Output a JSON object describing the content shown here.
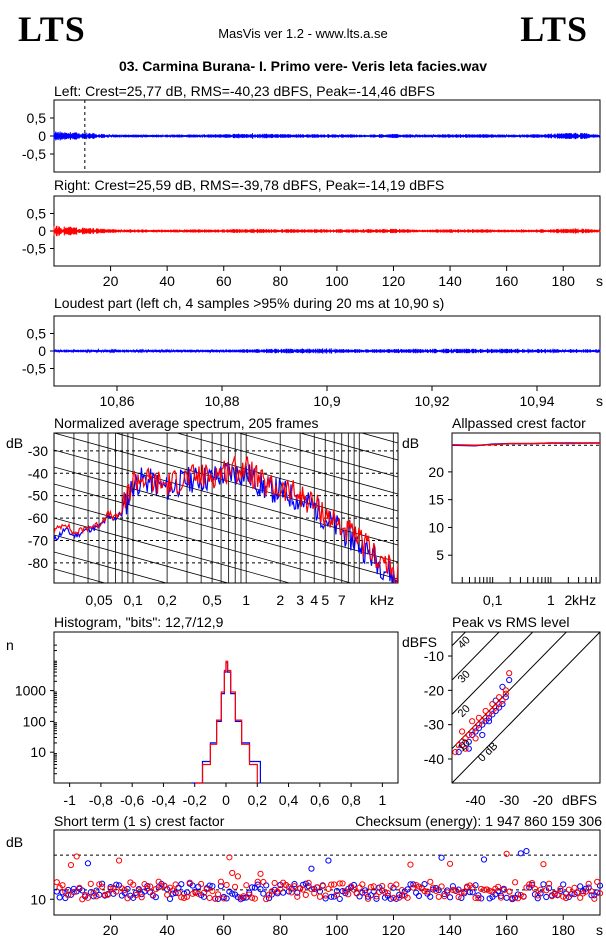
{
  "header": {
    "logo_left": "LTS",
    "logo_right": "LTS",
    "app": "MasVis ver 1.2 - www.lts.a.se",
    "file": "03. Carmina Burana- I. Primo vere- Veris leta facies.wav"
  },
  "colors": {
    "left": "#0000ff",
    "right": "#ff0000",
    "axis": "#000000",
    "grid": "#000000"
  },
  "chart_data": [
    {
      "id": "left_wave",
      "type": "line",
      "title": "Left: Crest=25,77 dB, RMS=-40,23 dBFS, Peak=-14,46 dBFS",
      "y_ticks": [
        "0,5",
        "0",
        "-0,5"
      ],
      "ylim": [
        -1,
        1
      ],
      "xlim": [
        0,
        193
      ],
      "marker_at_s": 10.9,
      "envelope": {
        "x": [
          0,
          2,
          5,
          8,
          12,
          20,
          40,
          60,
          70,
          80,
          100,
          110,
          120,
          130,
          140,
          150,
          160,
          170,
          180,
          186,
          193
        ],
        "amp": [
          0.12,
          0.1,
          0.09,
          0.08,
          0.07,
          0.03,
          0.03,
          0.04,
          0.06,
          0.04,
          0.04,
          0.03,
          0.05,
          0.03,
          0.04,
          0.04,
          0.03,
          0.04,
          0.06,
          0.08,
          0.02
        ]
      }
    },
    {
      "id": "right_wave",
      "type": "line",
      "title": "Right: Crest=25,59 dB, RMS=-39,78 dBFS, Peak=-14,19 dBFS",
      "y_ticks": [
        "0,5",
        "0",
        "-0,5"
      ],
      "ylim": [
        -1,
        1
      ],
      "xlim": [
        0,
        193
      ],
      "x_ticks": [
        "20",
        "40",
        "60",
        "80",
        "100",
        "120",
        "140",
        "160",
        "180"
      ],
      "x_tick_values": [
        20,
        40,
        60,
        80,
        100,
        120,
        140,
        160,
        180
      ],
      "x_unit": "s",
      "envelope": {
        "x": [
          0,
          2,
          5,
          8,
          12,
          20,
          40,
          60,
          70,
          80,
          100,
          110,
          120,
          130,
          140,
          150,
          160,
          170,
          180,
          186,
          193
        ],
        "amp": [
          0.13,
          0.1,
          0.1,
          0.08,
          0.07,
          0.04,
          0.03,
          0.04,
          0.05,
          0.04,
          0.04,
          0.04,
          0.05,
          0.03,
          0.04,
          0.04,
          0.03,
          0.04,
          0.05,
          0.06,
          0.02
        ]
      }
    },
    {
      "id": "loudest",
      "type": "line",
      "title": "Loudest part (left  ch, 4 samples >95% during 20 ms at 10,90 s)",
      "y_ticks": [
        "0,5",
        "0",
        "-0,5"
      ],
      "ylim": [
        -1,
        1
      ],
      "xlim": [
        10.848,
        10.952
      ],
      "x_ticks": [
        "10,86",
        "10,88",
        "10,9",
        "10,92",
        "10,94"
      ],
      "x_tick_values": [
        10.86,
        10.88,
        10.9,
        10.92,
        10.94
      ],
      "x_unit": "s",
      "envelope": {
        "x": [
          10.848,
          10.88,
          10.89,
          10.9,
          10.905,
          10.92,
          10.94,
          10.952
        ],
        "amp": [
          0.03,
          0.03,
          0.05,
          0.06,
          0.04,
          0.05,
          0.05,
          0.04
        ]
      }
    },
    {
      "id": "spectrum",
      "type": "line",
      "title": "Normalized average spectrum, 205 frames",
      "ylabel": "dB",
      "y_ticks": [
        "-30",
        "-40",
        "-50",
        "-60",
        "-70",
        "-80"
      ],
      "y_tick_values": [
        -30,
        -40,
        -50,
        -60,
        -70,
        -80
      ],
      "ylim": [
        -89,
        -22
      ],
      "x_scale": "log",
      "xlim": [
        0.02,
        22
      ],
      "x_ticks": [
        "0,05",
        "0,1",
        "0,2",
        "0,5",
        "1",
        "2",
        "3",
        "4",
        "5",
        "7"
      ],
      "x_tick_values": [
        0.05,
        0.1,
        0.2,
        0.5,
        1,
        2,
        3,
        4,
        5,
        7
      ],
      "x_unit": "kHz",
      "series": [
        {
          "color": "#0000ff",
          "x": [
            0.02,
            0.025,
            0.03,
            0.04,
            0.05,
            0.06,
            0.07,
            0.08,
            0.1,
            0.12,
            0.15,
            0.2,
            0.3,
            0.5,
            0.7,
            1,
            1.5,
            2,
            3,
            4,
            5,
            7,
            10,
            15,
            22
          ],
          "y": [
            -70,
            -65,
            -68,
            -65,
            -64,
            -60,
            -60,
            -58,
            -45,
            -43,
            -44,
            -47,
            -43,
            -42,
            -40,
            -40,
            -47,
            -48,
            -52,
            -55,
            -60,
            -66,
            -72,
            -80,
            -88
          ]
        },
        {
          "color": "#ff0000",
          "x": [
            0.02,
            0.025,
            0.03,
            0.04,
            0.05,
            0.06,
            0.07,
            0.08,
            0.1,
            0.12,
            0.15,
            0.2,
            0.3,
            0.5,
            0.7,
            1,
            1.5,
            2,
            3,
            4,
            5,
            7,
            10,
            15,
            22
          ],
          "y": [
            -66,
            -62,
            -67,
            -64,
            -63,
            -58,
            -60,
            -57,
            -43,
            -42,
            -44,
            -45,
            -42,
            -41,
            -38,
            -38,
            -46,
            -47,
            -50,
            -54,
            -58,
            -64,
            -70,
            -78,
            -86
          ]
        }
      ]
    },
    {
      "id": "allpass",
      "type": "line",
      "title": "Allpassed crest factor",
      "ylabel": "dB",
      "y_ticks": [
        "20",
        "15",
        "10",
        "5"
      ],
      "y_tick_values": [
        20,
        15,
        10,
        5
      ],
      "ylim": [
        0,
        27
      ],
      "x_scale": "log",
      "xlim": [
        0.02,
        7
      ],
      "x_ticks": [
        "0,1",
        "1",
        "2",
        "kHz"
      ],
      "x_tick_values": [
        0.1,
        1,
        2
      ],
      "series": [
        {
          "color": "#0000ff",
          "x": [
            0.02,
            0.05,
            0.1,
            0.2,
            0.5,
            1,
            2,
            5,
            7
          ],
          "y": [
            24.8,
            24.7,
            25.0,
            25.1,
            25.1,
            25.2,
            25.2,
            25.2,
            25.2
          ]
        },
        {
          "color": "#ff0000",
          "x": [
            0.02,
            0.05,
            0.1,
            0.2,
            0.5,
            1,
            2,
            5,
            7
          ],
          "y": [
            24.9,
            24.8,
            24.9,
            25.1,
            25.1,
            25.2,
            25.1,
            25.2,
            25.2
          ]
        }
      ]
    },
    {
      "id": "histogram",
      "type": "line",
      "title": "Histogram, \"bits\": 12,7/12,9",
      "ylabel": "n",
      "y_scale": "log",
      "y_ticks": [
        "1000",
        "100",
        "10"
      ],
      "y_tick_values": [
        1000,
        100,
        10
      ],
      "ylim": [
        1,
        80000
      ],
      "xlim": [
        -1.1,
        1.1
      ],
      "x_ticks": [
        "-1",
        "-0,8",
        "-0,6",
        "-0,4",
        "-0,2",
        "0",
        "0,2",
        "0,4",
        "0,6",
        "0,8",
        "1"
      ],
      "x_tick_values": [
        -1,
        -0.8,
        -0.6,
        -0.4,
        -0.2,
        0,
        0.2,
        0.4,
        0.6,
        0.8,
        1
      ],
      "series": [
        {
          "color": "#0000ff",
          "x": [
            -0.22,
            -0.15,
            -0.1,
            -0.06,
            -0.03,
            -0.01,
            0,
            0.01,
            0.03,
            0.06,
            0.1,
            0.15,
            0.22
          ],
          "y": [
            1,
            5,
            20,
            100,
            800,
            4000,
            8000,
            4000,
            800,
            100,
            20,
            5,
            1
          ]
        },
        {
          "color": "#ff0000",
          "x": [
            -0.2,
            -0.15,
            -0.1,
            -0.06,
            -0.03,
            -0.01,
            0,
            0.01,
            0.03,
            0.06,
            0.1,
            0.15,
            0.2
          ],
          "y": [
            1,
            4,
            18,
            110,
            900,
            4500,
            9000,
            4500,
            900,
            110,
            18,
            4,
            1
          ]
        }
      ]
    },
    {
      "id": "peak_rms",
      "type": "scatter",
      "title": "Peak vs RMS level",
      "ylabel": "dBFS",
      "y_ticks": [
        "-10",
        "-20",
        "-30",
        "-40"
      ],
      "y_tick_values": [
        -10,
        -20,
        -30,
        -40
      ],
      "ylim": [
        -47,
        -3
      ],
      "xlim": [
        -47,
        -3
      ],
      "x_ticks": [
        "-40",
        "-30",
        "-20",
        "dBFS"
      ],
      "x_tick_values": [
        -40,
        -30,
        -20
      ],
      "diagonal_labels": [
        "40",
        "30",
        "20",
        "10",
        "0 dB"
      ],
      "diagonal_offsets": [
        40,
        30,
        20,
        10,
        0
      ],
      "series": [
        {
          "color": "#0000ff",
          "x": [
            -45,
            -44,
            -42,
            -41,
            -40,
            -39,
            -38,
            -37,
            -36,
            -35,
            -34,
            -33,
            -32,
            -31,
            -36,
            -38,
            -42,
            -34,
            -32,
            -30
          ],
          "y": [
            -38,
            -36,
            -35,
            -33,
            -32,
            -31,
            -30,
            -29,
            -28,
            -27,
            -26,
            -25,
            -24,
            -22,
            -29,
            -33,
            -37,
            -23,
            -19,
            -17
          ]
        },
        {
          "color": "#ff0000",
          "x": [
            -46,
            -45,
            -44,
            -43,
            -42,
            -41,
            -40,
            -39,
            -38,
            -37,
            -36,
            -35,
            -34,
            -33,
            -32,
            -31,
            -30,
            -44,
            -41,
            -39,
            -37,
            -35,
            -33,
            -31,
            -43,
            -40
          ],
          "y": [
            -38,
            -36,
            -35,
            -34,
            -33,
            -32,
            -31,
            -30,
            -29,
            -28,
            -27,
            -26,
            -25,
            -24,
            -23,
            -21,
            -15,
            -32,
            -29,
            -28,
            -26,
            -24,
            -22,
            -20,
            -37,
            -34
          ]
        }
      ]
    },
    {
      "id": "short_crest",
      "type": "scatter",
      "title": "Short term (1 s) crest factor",
      "title_right": "Checksum (energy):  1 947 860 159 306",
      "ylabel": "dB",
      "y_ticks": [
        "10"
      ],
      "y_tick_values": [
        10
      ],
      "ylim": [
        5,
        32
      ],
      "ref_lines": [
        13,
        24
      ],
      "xlim": [
        0,
        193
      ],
      "x_ticks": [
        "20",
        "40",
        "60",
        "80",
        "100",
        "120",
        "140",
        "160",
        "180"
      ],
      "x_tick_values": [
        20,
        40,
        60,
        80,
        100,
        120,
        140,
        160,
        180
      ],
      "x_unit": "s",
      "series": [
        {
          "color": "#0000ff",
          "n": 193,
          "base": 12.5,
          "spread": 2.5,
          "seed": 7
        },
        {
          "color": "#ff0000",
          "n": 193,
          "base": 12.8,
          "spread": 2.8,
          "seed": 19
        }
      ]
    }
  ]
}
